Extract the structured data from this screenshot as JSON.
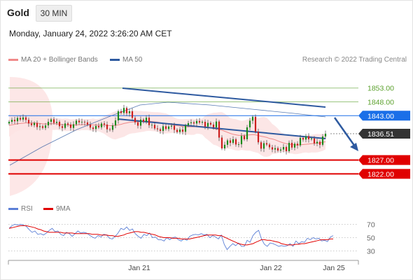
{
  "header": {
    "instrument": "Gold",
    "timeframe": "30 MIN",
    "datetime": "Monday, January 24, 2022 3:26:20 AM CET"
  },
  "legend": {
    "items": [
      {
        "label": "MA 20 + Bollinger Bands",
        "color": "#f08a8a"
      },
      {
        "label": "MA 50",
        "color": "#2e5aa0"
      }
    ],
    "credit": "Research © 2022 Trading Central"
  },
  "lower_legend": {
    "items": [
      {
        "label": "RSI",
        "color": "#5b7fd6"
      },
      {
        "label": "9MA",
        "color": "#e00000"
      }
    ]
  },
  "chart_data": [
    {
      "type": "candlestick",
      "ylim": [
        1812,
        1860
      ],
      "x_ticks": [
        "Jan 21",
        "Jan 22",
        "Jan 25"
      ],
      "levels": [
        {
          "label": "1853.00",
          "value": 1853.0,
          "color": "#5aa02c",
          "style": "resistance"
        },
        {
          "label": "1848.00",
          "value": 1848.0,
          "color": "#5aa02c",
          "style": "resistance"
        },
        {
          "label": "1843.00",
          "value": 1843.0,
          "color": "#1a6fe8",
          "style": "pivot"
        },
        {
          "label": "1836.51",
          "value": 1836.51,
          "color": "#333333",
          "style": "current"
        },
        {
          "label": "1827.00",
          "value": 1827.0,
          "color": "#e00000",
          "style": "support"
        },
        {
          "label": "1822.00",
          "value": 1822.0,
          "color": "#e00000",
          "style": "support"
        }
      ],
      "close_series": [
        1840.8,
        1841.5,
        1841.0,
        1842.2,
        1841.6,
        1842.4,
        1841.5,
        1840.2,
        1839.6,
        1840.4,
        1838.9,
        1839.2,
        1838.6,
        1839.5,
        1840.8,
        1841.7,
        1840.4,
        1840.8,
        1839.2,
        1838.6,
        1840.2,
        1839.8,
        1838.6,
        1839.9,
        1841.2,
        1840.6,
        1840.8,
        1840.6,
        1839.8,
        1838.7,
        1838.2,
        1839.3,
        1838.8,
        1840.2,
        1839.8,
        1838.1,
        1837.9,
        1839.5,
        1841.3,
        1844.6,
        1844.0,
        1845.8,
        1843.9,
        1844.6,
        1842.2,
        1840.6,
        1839.4,
        1841.6,
        1840.8,
        1842.3,
        1839.6,
        1839.7,
        1838.4,
        1838.1,
        1837.5,
        1839.2,
        1838.2,
        1839.1,
        1839.4,
        1837.9,
        1837.1,
        1838.0,
        1837.2,
        1839.5,
        1840.3,
        1840.6,
        1840.2,
        1841.1,
        1840.5,
        1840.8,
        1839.1,
        1840.4,
        1839.8,
        1838.8,
        1840.9,
        1835.1,
        1831.2,
        1832.5,
        1834.1,
        1833.2,
        1834.5,
        1832.6,
        1832.7,
        1835.7,
        1834.5,
        1838.8,
        1841.2,
        1842.6,
        1837.2,
        1833.4,
        1831.1,
        1833.1,
        1832.6,
        1831.6,
        1830.8,
        1831.3,
        1830.4,
        1830.8,
        1831.7,
        1830.2,
        1833.2,
        1831.5,
        1832.9,
        1832.3,
        1835.0,
        1834.4,
        1835.6,
        1834.5,
        1834.8,
        1833.0,
        1833.6,
        1832.5,
        1835.5,
        1836.5
      ],
      "ma20_series": [
        1839.5,
        1839.7,
        1839.9,
        1840.1,
        1840.2,
        1840.3,
        1840.4,
        1840.4,
        1840.4,
        1840.4,
        1840.3,
        1840.2,
        1840.1,
        1840.0,
        1840.1,
        1840.1,
        1840.1,
        1840.1,
        1839.9,
        1839.8,
        1839.7,
        1839.7,
        1839.6,
        1839.6,
        1839.7,
        1839.7,
        1839.8,
        1839.8,
        1839.8,
        1839.7,
        1839.7,
        1839.6,
        1839.6,
        1839.6,
        1839.6,
        1839.5,
        1839.4,
        1839.4,
        1839.5,
        1839.7,
        1839.9,
        1840.2,
        1840.4,
        1840.6,
        1840.7,
        1840.8,
        1840.8,
        1840.9,
        1840.9,
        1841.0,
        1841.0,
        1840.9,
        1840.8,
        1840.7,
        1840.5,
        1840.3,
        1840.2,
        1840.0,
        1839.8,
        1839.6,
        1839.4,
        1839.3,
        1839.1,
        1839.0,
        1839.0,
        1839.0,
        1839.0,
        1839.1,
        1839.1,
        1839.1,
        1839.0,
        1838.9,
        1838.6,
        1838.3,
        1838.2,
        1838.0,
        1837.8,
        1837.4,
        1837.0,
        1836.6,
        1836.3,
        1836.1,
        1835.9,
        1835.9,
        1835.9,
        1836.0,
        1836.1,
        1836.2,
        1836.1,
        1835.8,
        1835.6,
        1835.4,
        1835.2,
        1834.8,
        1834.6,
        1834.3,
        1833.9,
        1833.5,
        1833.2,
        1832.9,
        1832.7,
        1832.6,
        1832.5,
        1832.4,
        1832.5,
        1832.6,
        1832.7,
        1832.8,
        1832.9,
        1833.0,
        1833.1,
        1833.2,
        1833.4,
        1833.6
      ]
    },
    {
      "type": "line",
      "ylim": [
        20,
        80
      ],
      "y_ticks": [
        "70",
        "50",
        "30"
      ],
      "y_tick_values": [
        70,
        50,
        30
      ],
      "series": [
        {
          "name": "RSI",
          "values": [
            64,
            68,
            70,
            69,
            70,
            69,
            67,
            62,
            58,
            60,
            55,
            56,
            54,
            57,
            61,
            64,
            59,
            60,
            55,
            53,
            58,
            56,
            52,
            56,
            60,
            57,
            58,
            57,
            54,
            51,
            49,
            53,
            51,
            55,
            54,
            49,
            48,
            52,
            57,
            64,
            62,
            66,
            61,
            63,
            56,
            52,
            49,
            55,
            53,
            57,
            50,
            51,
            47,
            47,
            45,
            50,
            47,
            50,
            51,
            47,
            45,
            48,
            46,
            52,
            54,
            55,
            54,
            56,
            54,
            55,
            50,
            53,
            51,
            48,
            54,
            40,
            32,
            37,
            41,
            38,
            42,
            37,
            37,
            46,
            43,
            53,
            58,
            61,
            48,
            40,
            37,
            42,
            41,
            39,
            37,
            38,
            37,
            38,
            41,
            37,
            45,
            41,
            44,
            43,
            49,
            47,
            50,
            48,
            49,
            45,
            46,
            44,
            51,
            53
          ]
        },
        {
          "name": "9MA",
          "values": [
            64,
            65,
            66,
            67,
            68,
            68,
            68,
            67,
            66,
            65,
            63,
            62,
            60,
            59,
            58,
            58,
            58,
            58,
            58,
            57,
            57,
            57,
            57,
            56,
            56,
            56,
            56,
            56,
            56,
            55,
            55,
            55,
            54,
            54,
            54,
            53,
            53,
            52,
            52,
            53,
            54,
            56,
            57,
            58,
            59,
            59,
            58,
            58,
            57,
            56,
            55,
            54,
            52,
            51,
            50,
            50,
            50,
            49,
            49,
            49,
            48,
            48,
            48,
            48,
            49,
            50,
            51,
            52,
            53,
            54,
            54,
            54,
            54,
            53,
            53,
            51,
            49,
            47,
            45,
            43,
            41,
            40,
            39,
            39,
            40,
            41,
            43,
            45,
            47,
            47,
            46,
            46,
            45,
            44,
            43,
            41,
            40,
            39,
            39,
            39,
            40,
            40,
            41,
            41,
            42,
            43,
            44,
            45,
            46,
            47,
            47,
            47,
            48,
            48
          ]
        }
      ]
    }
  ]
}
